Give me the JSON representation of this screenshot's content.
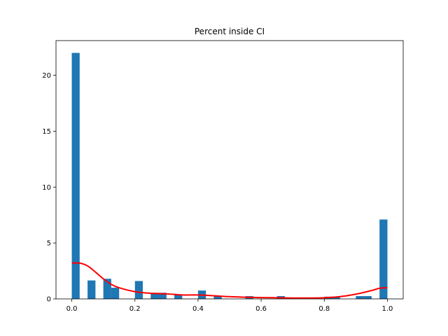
{
  "chart_data": {
    "type": "bar",
    "title": "Percent inside CI",
    "xlabel": "",
    "ylabel": "",
    "xlim": [
      -0.05,
      1.05
    ],
    "ylim": [
      0,
      23.1
    ],
    "xticks": [
      0.0,
      0.2,
      0.4,
      0.6,
      0.8,
      1.0
    ],
    "xtick_labels": [
      "0.0",
      "0.2",
      "0.4",
      "0.6",
      "0.8",
      "1.0"
    ],
    "yticks": [
      0,
      5,
      10,
      15,
      20
    ],
    "ytick_labels": [
      "0",
      "5",
      "10",
      "15",
      "20"
    ],
    "grid": false,
    "bin_width": 0.025,
    "bins": [
      {
        "x0": 0.0,
        "value": 22.0
      },
      {
        "x0": 0.05,
        "value": 1.65
      },
      {
        "x0": 0.1,
        "value": 1.8
      },
      {
        "x0": 0.125,
        "value": 1.0
      },
      {
        "x0": 0.2,
        "value": 1.6
      },
      {
        "x0": 0.25,
        "value": 0.55
      },
      {
        "x0": 0.275,
        "value": 0.55
      },
      {
        "x0": 0.325,
        "value": 0.4
      },
      {
        "x0": 0.4,
        "value": 0.75
      },
      {
        "x0": 0.45,
        "value": 0.25
      },
      {
        "x0": 0.55,
        "value": 0.25
      },
      {
        "x0": 0.65,
        "value": 0.25
      },
      {
        "x0": 0.8,
        "value": 0.2
      },
      {
        "x0": 0.825,
        "value": 0.2
      },
      {
        "x0": 0.9,
        "value": 0.25
      },
      {
        "x0": 0.925,
        "value": 0.25
      },
      {
        "x0": 0.975,
        "value": 7.1
      }
    ],
    "density_curve": {
      "x": [
        0.0,
        0.025,
        0.05,
        0.075,
        0.1,
        0.125,
        0.15,
        0.2,
        0.25,
        0.3,
        0.35,
        0.4,
        0.45,
        0.5,
        0.55,
        0.6,
        0.65,
        0.7,
        0.75,
        0.8,
        0.85,
        0.9,
        0.95,
        0.975,
        1.0
      ],
      "y": [
        3.2,
        3.2,
        2.95,
        2.4,
        1.8,
        1.3,
        1.0,
        0.65,
        0.5,
        0.45,
        0.35,
        0.35,
        0.28,
        0.2,
        0.15,
        0.12,
        0.1,
        0.08,
        0.08,
        0.1,
        0.2,
        0.42,
        0.75,
        0.95,
        1.0
      ]
    },
    "colors": {
      "bar": "#1f77b4",
      "curve": "#ff0000"
    }
  }
}
